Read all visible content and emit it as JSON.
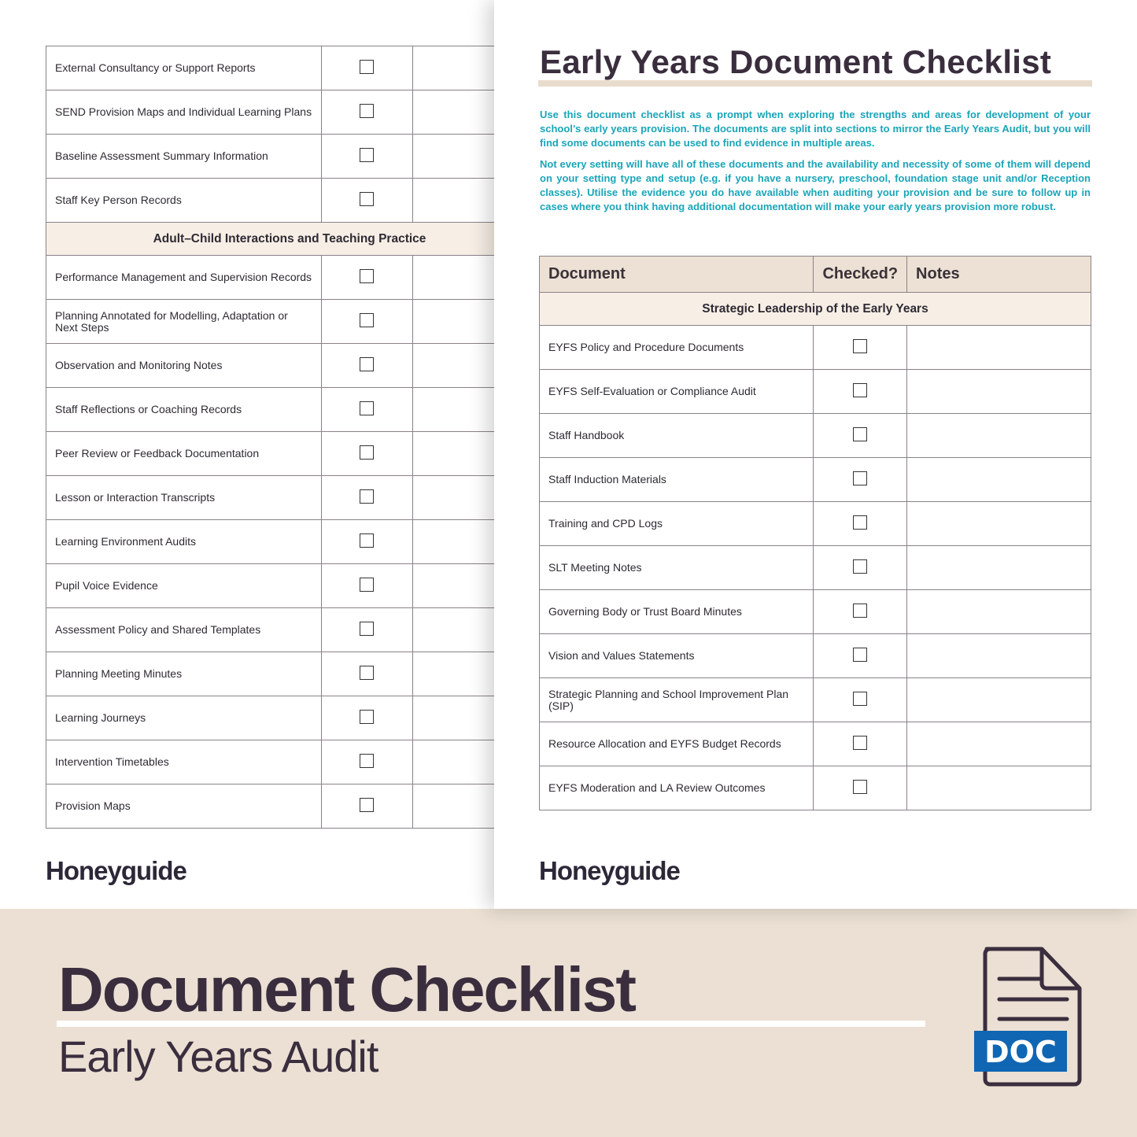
{
  "left_page": {
    "rows_a": [
      "External Consultancy or Support Reports",
      "SEND Provision Maps and Individual Learning Plans",
      "Baseline Assessment Summary Information",
      "Staff Key Person Records"
    ],
    "section": "Adult–Child Interactions and Teaching Practice",
    "rows_b": [
      "Performance Management and Supervision Records",
      "Planning Annotated for Modelling, Adaptation or Next Steps",
      "Observation and Monitoring Notes",
      "Staff Reflections or Coaching Records",
      "Peer Review or Feedback Documentation",
      "Lesson or Interaction Transcripts",
      "Learning Environment Audits",
      "Pupil Voice Evidence",
      "Assessment Policy and Shared Templates",
      "Planning Meeting Minutes",
      "Learning Journeys",
      "Intervention Timetables",
      "Provision Maps"
    ],
    "logo": "Honeyguide"
  },
  "right_page": {
    "title": "Early Years Document Checklist",
    "intro_1": "Use this document checklist as a prompt when exploring the strengths and areas for development of your school’s early years provision. The documents are split into sections to mirror the Early Years Audit, but you will find some documents can be used to find evidence in multiple areas.",
    "intro_2": "Not every setting will have all of these documents and the availability and necessity of some of them will depend on your setting type and setup (e.g. if you have a nursery, preschool, foundation stage unit and/or Reception classes). Utilise the evidence you do have available when auditing your provision and be sure to follow up in cases where you think having additional documentation will make your early years provision more robust.",
    "headers": [
      "Document",
      "Checked?",
      "Notes"
    ],
    "section": "Strategic Leadership of the Early Years",
    "rows": [
      "EYFS Policy and Procedure Documents",
      "EYFS Self-Evaluation or Compliance Audit",
      "Staff Handbook",
      "Staff Induction Materials",
      "Training and CPD Logs",
      "SLT Meeting Notes",
      "Governing Body or Trust Board Minutes",
      "Vision and Values Statements",
      "Strategic Planning and School Improvement Plan (SIP)",
      "Resource Allocation and EYFS Budget Records",
      "EYFS Moderation and LA Review Outcomes"
    ],
    "logo": "Honeyguide"
  },
  "banner": {
    "title": "Document Checklist",
    "subtitle": "Early Years Audit",
    "badge": "DOC",
    "icon": "document-file-icon"
  },
  "colors": {
    "accent_text": "#1aa5b8",
    "header_fill": "#ece1d4",
    "banner_bg": "#ebe0d3",
    "badge": "#1066b3",
    "dark": "#3a2e3e"
  }
}
